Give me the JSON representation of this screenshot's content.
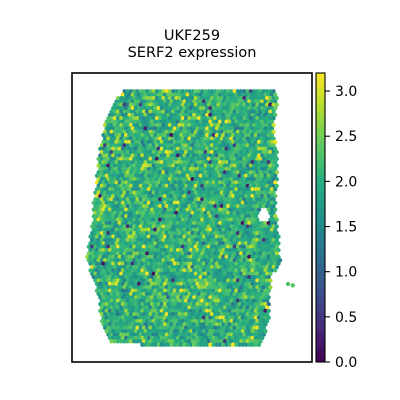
{
  "chart_data": {
    "type": "scatter",
    "title": "UKF259\nSERF2 expression",
    "xlabel": "",
    "ylabel": "",
    "grid": false,
    "legend": "none",
    "colorbar": {
      "cmap": "viridis",
      "range": [
        0.0,
        3.2
      ],
      "ticks": [
        0.0,
        0.5,
        1.0,
        1.5,
        2.0,
        2.5,
        3.0
      ],
      "tick_labels": [
        "0.0",
        "0.5",
        "1.0",
        "1.5",
        "2.0",
        "2.5",
        "3.0"
      ],
      "placement": "right"
    },
    "point_style": "hexagonal spot grid",
    "value_distribution": {
      "typical_range": [
        1.5,
        2.5
      ],
      "mean": 2.0,
      "low_fraction": 0.015,
      "high_fraction": 0.08
    },
    "tissue_outline": [
      [
        0.22,
        0.06
      ],
      [
        0.85,
        0.06
      ],
      [
        0.86,
        0.1
      ],
      [
        0.84,
        0.18
      ],
      [
        0.86,
        0.3
      ],
      [
        0.85,
        0.45
      ],
      [
        0.86,
        0.55
      ],
      [
        0.87,
        0.66
      ],
      [
        0.83,
        0.7
      ],
      [
        0.82,
        0.86
      ],
      [
        0.79,
        0.94
      ],
      [
        0.4,
        0.95
      ],
      [
        0.16,
        0.93
      ],
      [
        0.12,
        0.86
      ],
      [
        0.11,
        0.77
      ],
      [
        0.08,
        0.7
      ],
      [
        0.06,
        0.63
      ],
      [
        0.08,
        0.55
      ],
      [
        0.09,
        0.45
      ],
      [
        0.11,
        0.3
      ],
      [
        0.13,
        0.2
      ],
      [
        0.15,
        0.14
      ],
      [
        0.18,
        0.09
      ]
    ],
    "holes": [
      {
        "cx": 0.8,
        "cy": 0.49,
        "r": 0.025
      }
    ]
  }
}
